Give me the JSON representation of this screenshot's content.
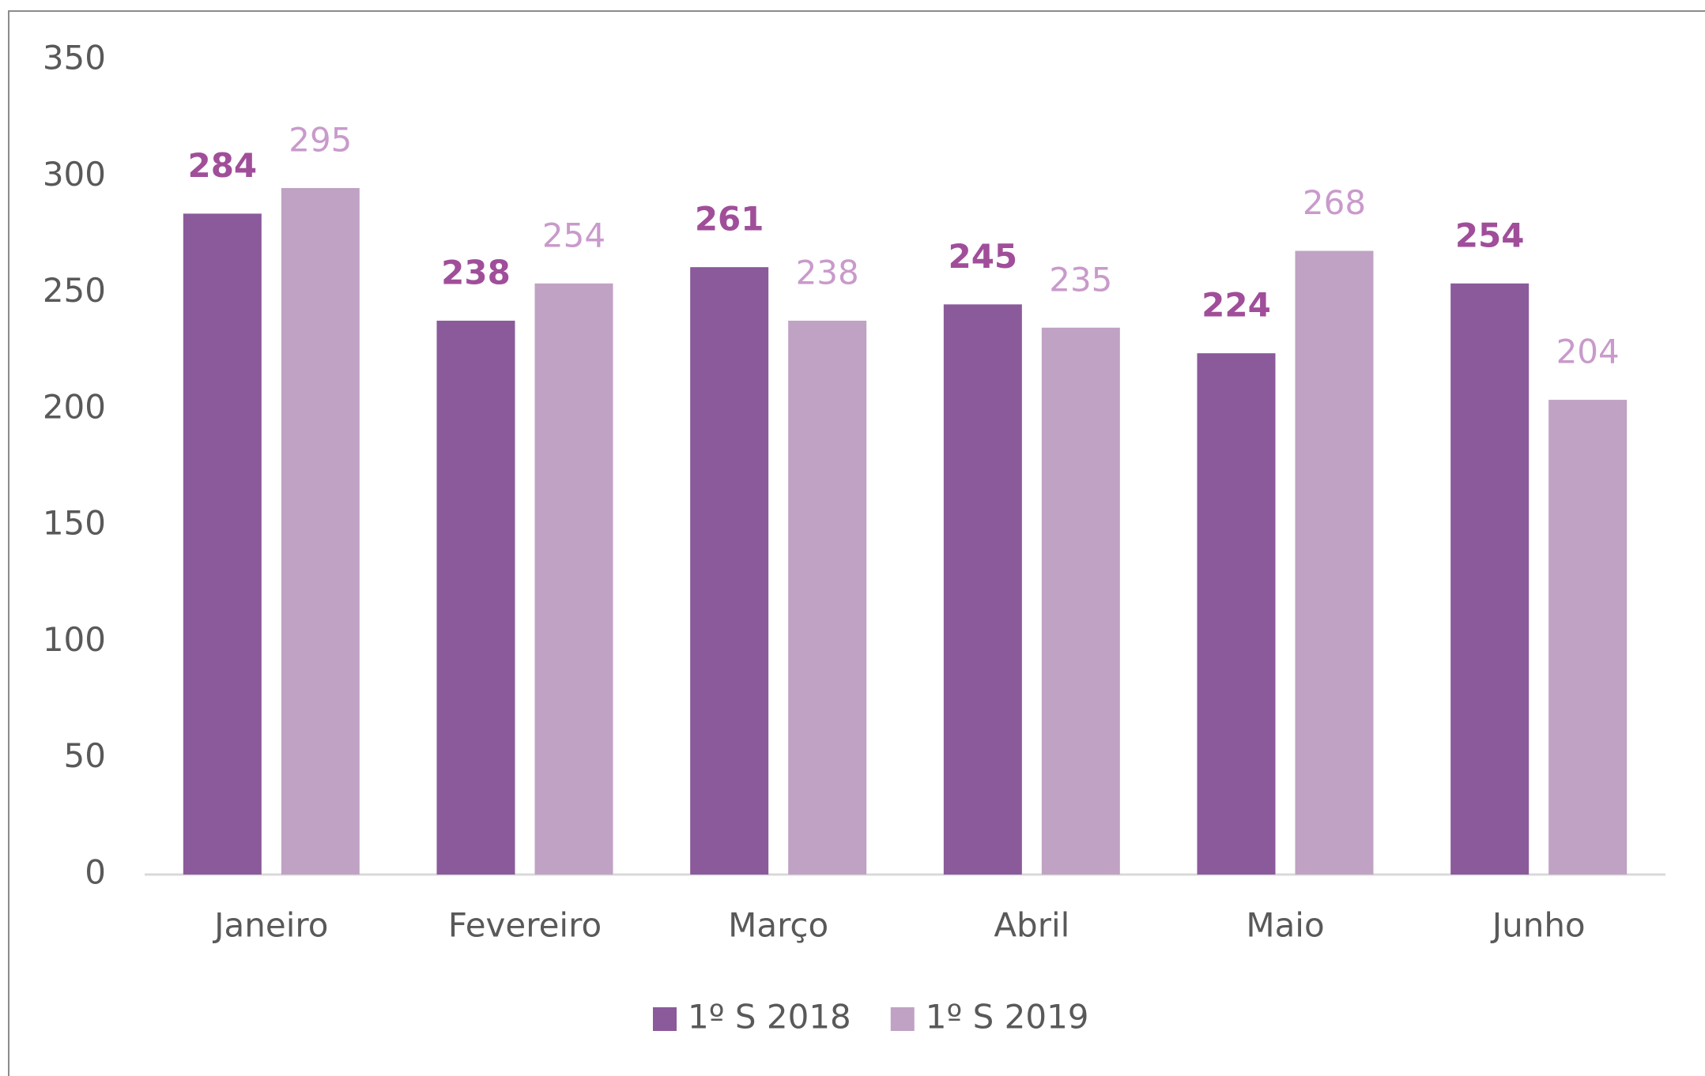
{
  "chart_data": {
    "type": "bar",
    "categories": [
      "Janeiro",
      "Fevereiro",
      "Março",
      "Abril",
      "Maio",
      "Junho"
    ],
    "series": [
      {
        "name": "1º S 2018",
        "color": "#8a5a9b",
        "label_color": "#a04e9a",
        "values": [
          284,
          238,
          261,
          245,
          224,
          254
        ]
      },
      {
        "name": "1º S 2019",
        "color": "#c0a2c4",
        "label_color": "#c99acb",
        "values": [
          295,
          254,
          238,
          235,
          268,
          204
        ]
      }
    ],
    "ylim": [
      0,
      350
    ],
    "yticks": [
      0,
      50,
      100,
      150,
      200,
      250,
      300,
      350
    ],
    "grid": false,
    "legend": "bottom"
  }
}
